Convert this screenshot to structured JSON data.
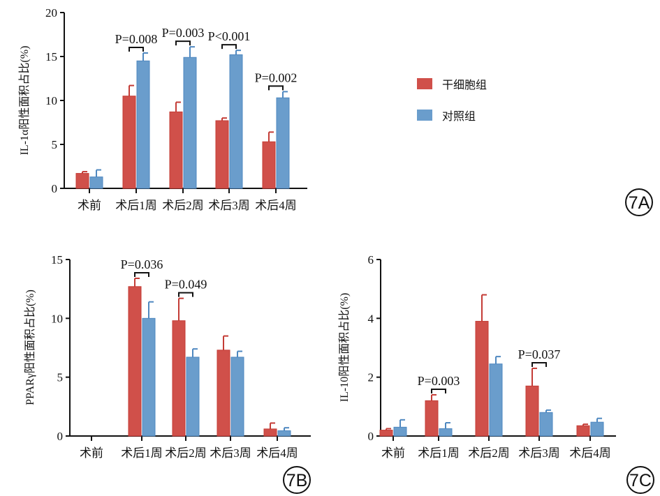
{
  "legend": {
    "items": [
      {
        "label": "干细胞组",
        "color": "#d0504a"
      },
      {
        "label": "对照组",
        "color": "#6a9dcc"
      }
    ]
  },
  "chart_data": [
    {
      "type": "bar",
      "panel": "7A",
      "ylabel": "IL-1α阳性面积占比(%)",
      "ylim": [
        0,
        20
      ],
      "yticks": [
        0,
        5,
        10,
        15,
        20
      ],
      "categories": [
        "术前",
        "术后1周",
        "术后2周",
        "术后3周",
        "术后4周"
      ],
      "series": [
        {
          "name": "干细胞组",
          "values": [
            1.7,
            10.5,
            8.7,
            7.7,
            5.3
          ],
          "error_top": [
            1.9,
            11.7,
            9.8,
            8.0,
            6.4
          ]
        },
        {
          "name": "对照组",
          "values": [
            1.3,
            14.5,
            14.9,
            15.2,
            10.3
          ],
          "error_top": [
            2.1,
            15.4,
            16.1,
            15.7,
            11.0
          ]
        }
      ],
      "annotations": [
        {
          "category": 1,
          "text": "P=0.008"
        },
        {
          "category": 2,
          "text": "P=0.003"
        },
        {
          "category": 3,
          "text": "P<0.001"
        },
        {
          "category": 4,
          "text": "P=0.002"
        }
      ]
    },
    {
      "type": "bar",
      "panel": "7B",
      "ylabel": "PPARγ阳性面积占比(%)",
      "ylim": [
        0,
        15
      ],
      "yticks": [
        0,
        5,
        10,
        15
      ],
      "categories": [
        "术前",
        "术后1周",
        "术后2周",
        "术后3周",
        "术后4周"
      ],
      "series": [
        {
          "name": "干细胞组",
          "values": [
            0,
            12.7,
            9.8,
            7.3,
            0.6
          ],
          "error_top": [
            0,
            13.4,
            11.7,
            8.5,
            1.1
          ]
        },
        {
          "name": "对照组",
          "values": [
            0,
            10.0,
            6.7,
            6.7,
            0.45
          ],
          "error_top": [
            0,
            11.4,
            7.4,
            7.2,
            0.7
          ]
        }
      ],
      "annotations": [
        {
          "category": 1,
          "text": "P=0.036"
        },
        {
          "category": 2,
          "text": "P=0.049"
        }
      ]
    },
    {
      "type": "bar",
      "panel": "7C",
      "ylabel": "IL-10阳性面积占比(%)",
      "ylim": [
        0,
        6
      ],
      "yticks": [
        0,
        2,
        4,
        6
      ],
      "categories": [
        "术前",
        "术后1周",
        "术后2周",
        "术后3周",
        "术后4周"
      ],
      "series": [
        {
          "name": "干细胞组",
          "values": [
            0.2,
            1.2,
            3.9,
            1.7,
            0.35
          ],
          "error_top": [
            0.25,
            1.4,
            4.8,
            2.3,
            0.4
          ]
        },
        {
          "name": "对照组",
          "values": [
            0.3,
            0.25,
            2.45,
            0.8,
            0.47
          ],
          "error_top": [
            0.55,
            0.45,
            2.7,
            0.88,
            0.6
          ]
        }
      ],
      "annotations": [
        {
          "category": 1,
          "text": "P=0.003"
        },
        {
          "category": 3,
          "text": "P=0.037"
        }
      ]
    }
  ]
}
